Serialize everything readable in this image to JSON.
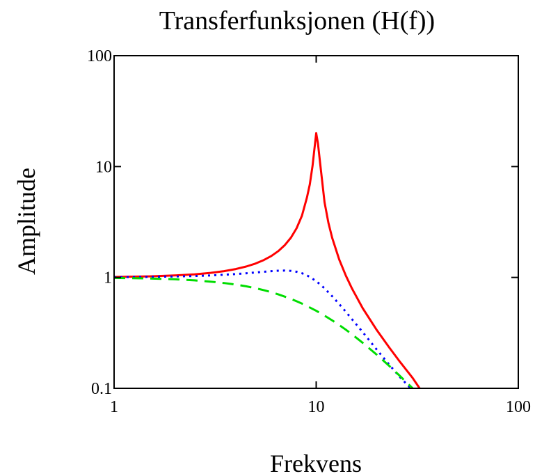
{
  "chart_data": {
    "type": "line",
    "title": "Transferfunksjonen (H(f))",
    "xlabel": "Frekvens",
    "ylabel": "Amplitude",
    "xscale": "log",
    "yscale": "log",
    "xlim": [
      1,
      100
    ],
    "ylim": [
      0.1,
      100
    ],
    "x_ticks": [
      "1",
      "10",
      "100"
    ],
    "y_ticks": [
      "0.1",
      "1",
      "10",
      "100"
    ],
    "grid": false,
    "legend": "none",
    "series": [
      {
        "color": "#ff0000",
        "style": "solid",
        "x": [
          1,
          1.5,
          2,
          2.5,
          3,
          3.5,
          4,
          4.5,
          5,
          5.5,
          6,
          6.5,
          7,
          7.5,
          8,
          8.5,
          9,
          9.3,
          9.6,
          9.8,
          10,
          10.2,
          10.5,
          11,
          11.5,
          12,
          13,
          14,
          15,
          17,
          20,
          23,
          26,
          30,
          32.5
        ],
        "y": [
          1.01,
          1.023,
          1.042,
          1.067,
          1.099,
          1.14,
          1.19,
          1.254,
          1.333,
          1.434,
          1.563,
          1.732,
          1.961,
          2.286,
          2.778,
          3.604,
          5.263,
          6.9,
          10.2,
          14.5,
          20,
          16.2,
          10.0,
          4.76,
          3.1,
          2.27,
          1.449,
          1.042,
          0.8,
          0.527,
          0.333,
          0.233,
          0.173,
          0.124,
          0.1
        ]
      },
      {
        "color": "#0000ff",
        "style": "dotted",
        "x": [
          1,
          1.5,
          2,
          2.5,
          3,
          3.5,
          4,
          4.5,
          5,
          5.5,
          6,
          6.5,
          7,
          7.5,
          8,
          8.5,
          9,
          10,
          11,
          12,
          13,
          14,
          15,
          17,
          20,
          23,
          26,
          30,
          32
        ],
        "y": [
          1.005,
          1.011,
          1.02,
          1.03,
          1.043,
          1.057,
          1.073,
          1.09,
          1.108,
          1.125,
          1.14,
          1.15,
          1.153,
          1.146,
          1.126,
          1.092,
          1.046,
          0.927,
          0.798,
          0.677,
          0.575,
          0.491,
          0.422,
          0.321,
          0.222,
          0.163,
          0.126,
          0.096,
          0.088
        ]
      },
      {
        "color": "#00dd00",
        "style": "dashed",
        "x": [
          1,
          1.5,
          2,
          2.5,
          3,
          3.5,
          4,
          4.5,
          5,
          5.5,
          6,
          6.5,
          7,
          7.5,
          8,
          8.5,
          9,
          10,
          11,
          12,
          13,
          14,
          15,
          17,
          20,
          23,
          26,
          30,
          31
        ],
        "y": [
          0.99,
          0.978,
          0.962,
          0.941,
          0.917,
          0.891,
          0.862,
          0.832,
          0.8,
          0.768,
          0.735,
          0.703,
          0.671,
          0.64,
          0.61,
          0.581,
          0.552,
          0.5,
          0.452,
          0.41,
          0.372,
          0.338,
          0.308,
          0.257,
          0.2,
          0.159,
          0.129,
          0.1,
          0.095
        ]
      }
    ]
  }
}
